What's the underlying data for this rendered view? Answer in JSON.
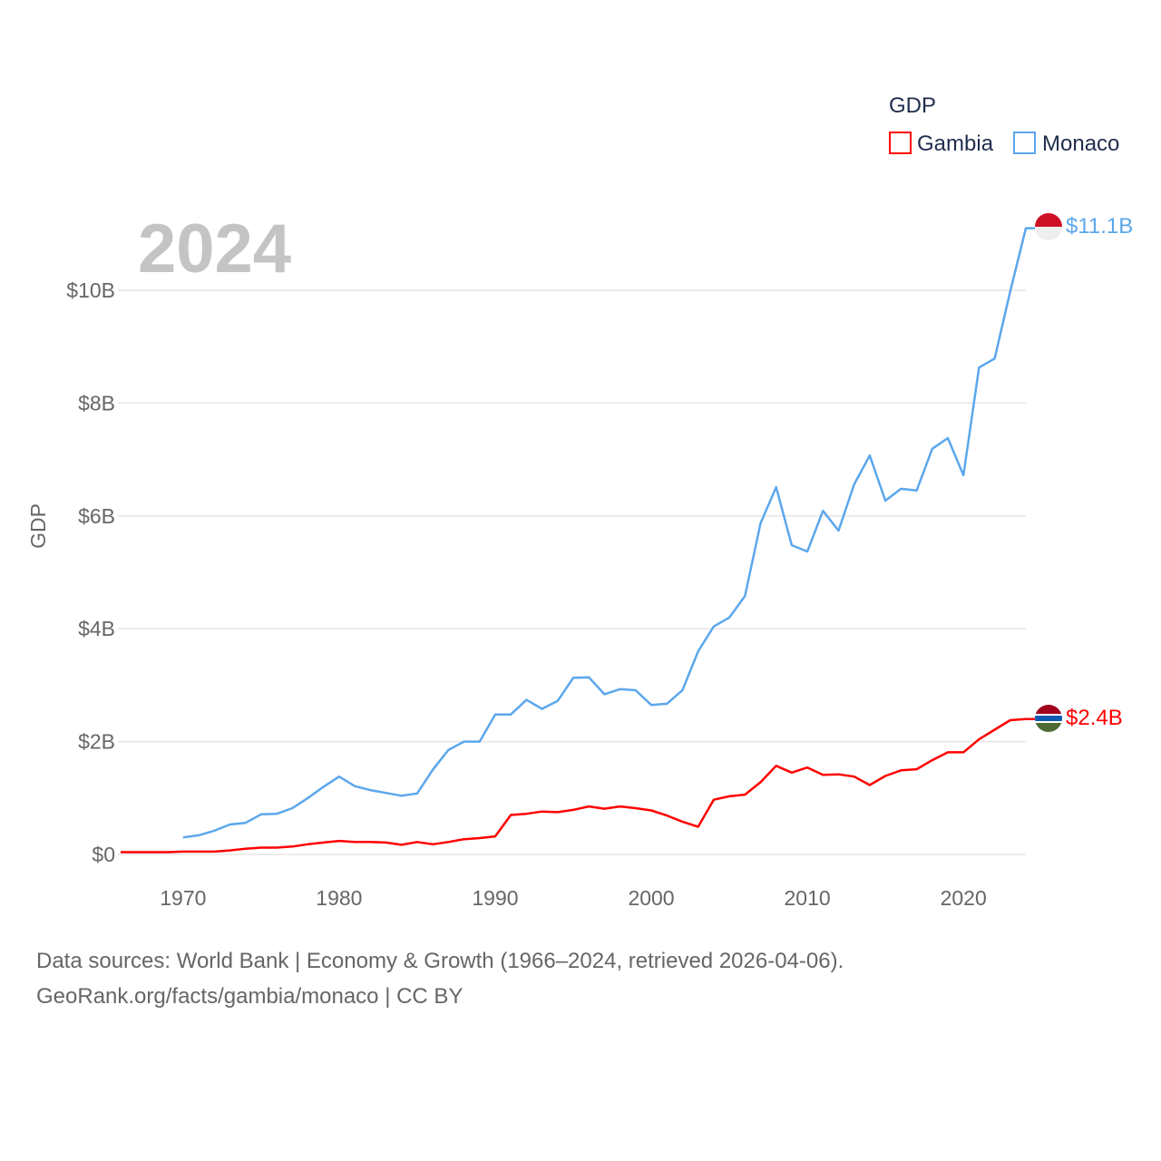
{
  "chart_data": {
    "type": "line",
    "title": "GDP",
    "year_label": "2024",
    "ylabel": "GDP",
    "xlim": [
      1966,
      2024
    ],
    "ylim": [
      0,
      10
    ],
    "y_ticks": [
      {
        "v": 0,
        "label": "$0"
      },
      {
        "v": 2,
        "label": "$2B"
      },
      {
        "v": 4,
        "label": "$4B"
      },
      {
        "v": 6,
        "label": "$6B"
      },
      {
        "v": 8,
        "label": "$8B"
      },
      {
        "v": 10,
        "label": "$10B"
      }
    ],
    "x_ticks": [
      1970,
      1980,
      1990,
      2000,
      2010,
      2020
    ],
    "grid": true,
    "legend_position": "top-right",
    "units": "billions USD",
    "series": [
      {
        "name": "Gambia",
        "color": "#ff0000",
        "end_label": "$2.4B",
        "start_year": 1966,
        "values": [
          0.04,
          0.04,
          0.04,
          0.04,
          0.05,
          0.05,
          0.05,
          0.07,
          0.1,
          0.12,
          0.12,
          0.14,
          0.18,
          0.21,
          0.24,
          0.22,
          0.22,
          0.21,
          0.17,
          0.22,
          0.18,
          0.22,
          0.27,
          0.29,
          0.32,
          0.7,
          0.72,
          0.76,
          0.75,
          0.79,
          0.85,
          0.81,
          0.85,
          0.82,
          0.78,
          0.69,
          0.58,
          0.49,
          0.97,
          1.03,
          1.06,
          1.28,
          1.57,
          1.45,
          1.54,
          1.41,
          1.42,
          1.38,
          1.23,
          1.39,
          1.49,
          1.51,
          1.67,
          1.81,
          1.81,
          2.04,
          2.21,
          2.38,
          2.4
        ]
      },
      {
        "name": "Monaco",
        "color": "#5ba7ec",
        "end_label": "$11.1B",
        "start_year": 1970,
        "values": [
          0.3,
          0.34,
          0.42,
          0.53,
          0.56,
          0.71,
          0.72,
          0.82,
          1.0,
          1.2,
          1.38,
          1.21,
          1.14,
          1.09,
          1.04,
          1.08,
          1.5,
          1.85,
          2.0,
          2.0,
          2.48,
          2.48,
          2.74,
          2.58,
          2.72,
          3.13,
          3.14,
          2.84,
          2.93,
          2.91,
          2.65,
          2.67,
          2.91,
          3.6,
          4.04,
          4.2,
          4.58,
          5.87,
          6.51,
          5.48,
          5.37,
          6.09,
          5.74,
          6.56,
          7.07,
          6.27,
          6.48,
          6.45,
          7.19,
          7.38,
          6.72,
          8.63,
          8.79,
          9.98,
          11.1
        ]
      }
    ]
  },
  "footer": {
    "line1": "Data sources: World Bank | Economy & Growth (1966–2024, retrieved 2026-04-06).",
    "line2": "GeoRank.org/facts/gambia/monaco | CC BY"
  }
}
